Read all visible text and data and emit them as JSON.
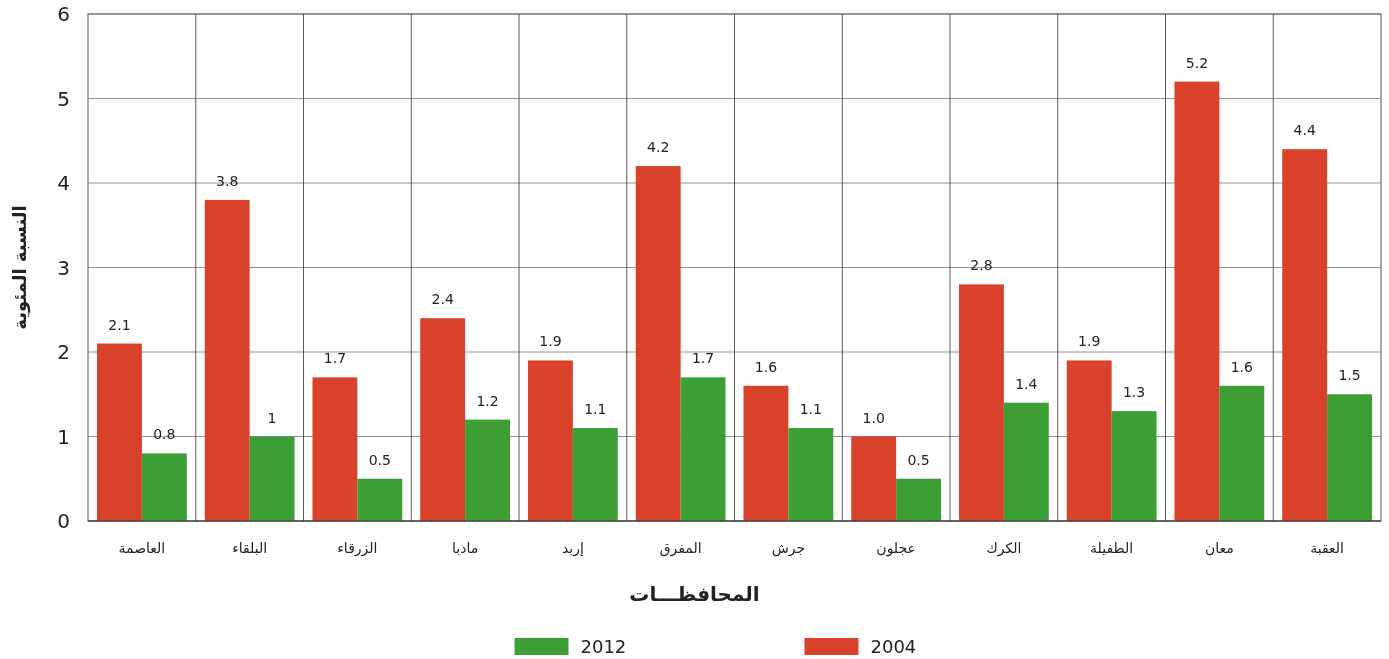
{
  "chart_data": {
    "type": "bar",
    "xlabel": "المحافظـــات",
    "ylabel": "النسبة المئوية",
    "categories": [
      "العاصمة",
      "البلقاء",
      "الزرقاء",
      "مادبا",
      "إربد",
      "المفرق",
      "جرش",
      "عجلون",
      "الكرك",
      "الطفيلة",
      "معان",
      "العقبة"
    ],
    "series": [
      {
        "name": "2004",
        "color": "#d8412a",
        "values": [
          2.1,
          3.8,
          1.7,
          2.4,
          1.9,
          4.2,
          1.6,
          1.0,
          2.8,
          1.9,
          5.2,
          4.4
        ],
        "value_labels": [
          "2.1",
          "3.8",
          "1.7",
          "2.4",
          "1.9",
          "4.2",
          "1.6",
          "1.0",
          "2.8",
          "1.9",
          "5.2",
          "4.4"
        ]
      },
      {
        "name": "2012",
        "color": "#3c9e35",
        "values": [
          0.8,
          1,
          0.5,
          1.2,
          1.1,
          1.7,
          1.1,
          0.5,
          1.4,
          1.3,
          1.6,
          1.5
        ],
        "value_labels": [
          "0.8",
          "1",
          "0.5",
          "1.2",
          "1.1",
          "1.7",
          "1.1",
          "0.5",
          "1.4",
          "1.3",
          "1.6",
          "1.5"
        ]
      }
    ],
    "ylim": [
      0,
      6
    ],
    "yticks": [
      0,
      1,
      2,
      3,
      4,
      5,
      6
    ],
    "grid": true,
    "legend": "bottom"
  }
}
